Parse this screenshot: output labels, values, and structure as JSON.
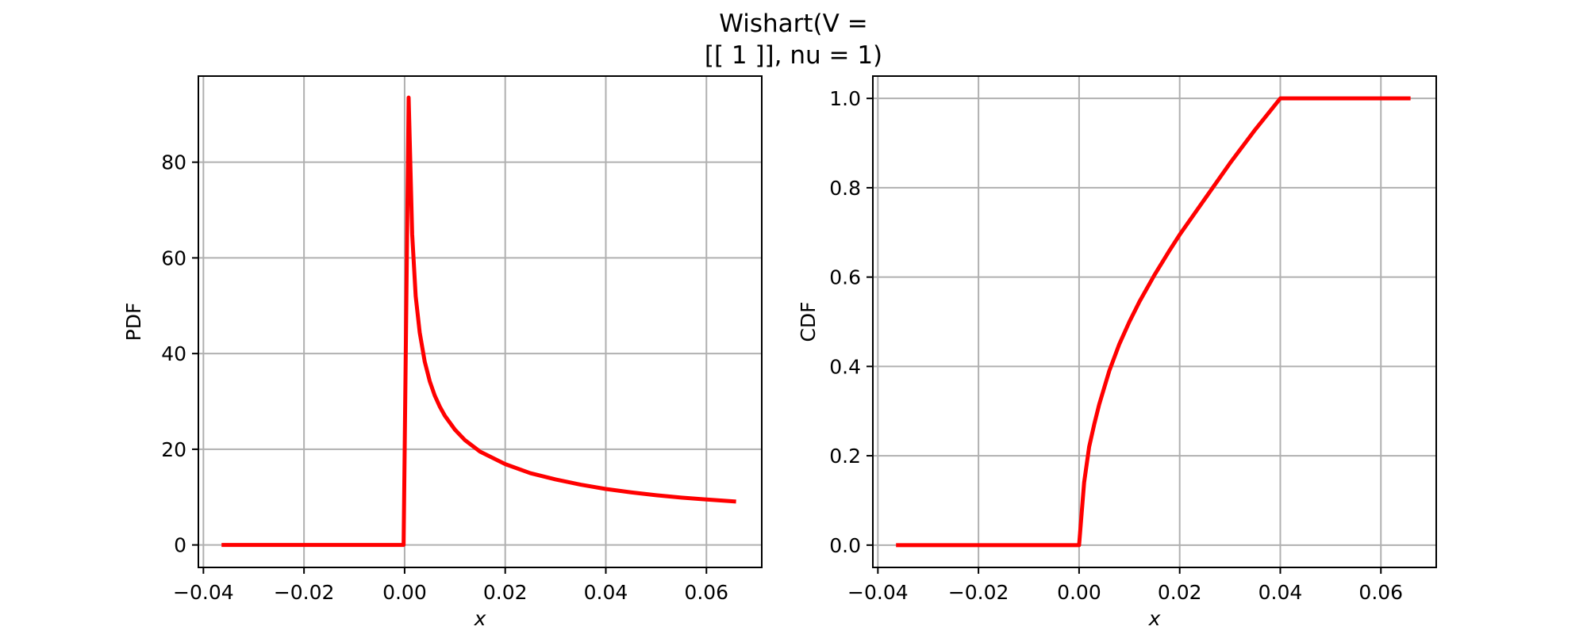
{
  "title_line1": "Wishart(V =",
  "title_line2": "[[ 1 ]], nu = 1)",
  "chart_data": [
    {
      "type": "line",
      "xlabel": "x",
      "ylabel": "PDF",
      "xlim": [
        -0.041,
        0.071
      ],
      "ylim": [
        -4.7,
        98.0
      ],
      "xticks": [
        -0.04,
        -0.02,
        0.0,
        0.02,
        0.04,
        0.06
      ],
      "xtick_labels": [
        "−0.04",
        "−0.02",
        "0.00",
        "0.02",
        "0.04",
        "0.06"
      ],
      "yticks": [
        0,
        20,
        40,
        60,
        80
      ],
      "ytick_labels": [
        "0",
        "20",
        "40",
        "60",
        "80"
      ],
      "grid": true,
      "color": "#ff0000",
      "series": [
        {
          "x": [
            -0.036,
            -0.02,
            -0.01,
            -0.0002,
            0.0008,
            0.0015,
            0.0022,
            0.003,
            0.004,
            0.005,
            0.006,
            0.007,
            0.008,
            0.01,
            0.012,
            0.015,
            0.02,
            0.025,
            0.03,
            0.035,
            0.04,
            0.045,
            0.05,
            0.055,
            0.06,
            0.0655
          ],
          "y": [
            0,
            0,
            0,
            0,
            93.5,
            65,
            52,
            44.4,
            38.3,
            34.2,
            31.2,
            28.9,
            27.0,
            24.1,
            21.9,
            19.5,
            16.9,
            15.0,
            13.7,
            12.6,
            11.7,
            11.0,
            10.4,
            9.9,
            9.5,
            9.1
          ]
        }
      ]
    },
    {
      "type": "line",
      "xlabel": "x",
      "ylabel": "CDF",
      "xlim": [
        -0.041,
        0.071
      ],
      "ylim": [
        -0.05,
        1.05
      ],
      "xticks": [
        -0.04,
        -0.02,
        0.0,
        0.02,
        0.04,
        0.06
      ],
      "xtick_labels": [
        "−0.04",
        "−0.02",
        "0.00",
        "0.02",
        "0.04",
        "0.06"
      ],
      "yticks": [
        0.0,
        0.2,
        0.4,
        0.6,
        0.8,
        1.0
      ],
      "ytick_labels": [
        "0.0",
        "0.2",
        "0.4",
        "0.6",
        "0.8",
        "1.0"
      ],
      "grid": true,
      "color": "#ff0000",
      "series": [
        {
          "x": [
            -0.036,
            -0.02,
            -0.01,
            0.0,
            0.001,
            0.002,
            0.003,
            0.004,
            0.006,
            0.008,
            0.01,
            0.012,
            0.015,
            0.018,
            0.02,
            0.025,
            0.03,
            0.035,
            0.04,
            0.045,
            0.05,
            0.055,
            0.06,
            0.0655
          ],
          "y": [
            0,
            0,
            0,
            0,
            0.14,
            0.22,
            0.27,
            0.315,
            0.39,
            0.45,
            0.5,
            0.545,
            0.605,
            0.66,
            0.695,
            0.775,
            0.855,
            0.93,
            1.0,
            1.0,
            1.0,
            1.0,
            1.0,
            1.0
          ]
        }
      ]
    }
  ]
}
